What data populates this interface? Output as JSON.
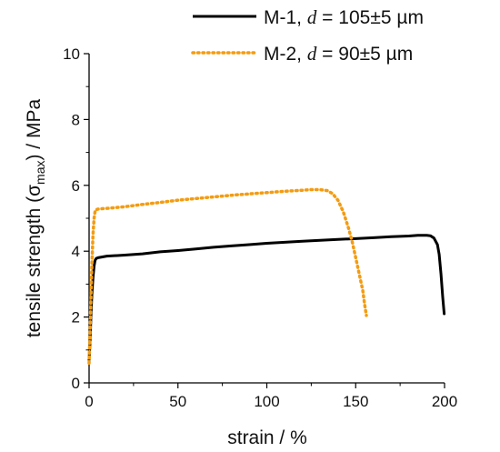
{
  "chart_data": {
    "type": "line",
    "xlabel": "strain / %",
    "ylabel": {
      "prefix": "tensile strength (σ",
      "subscript": "max",
      "suffix": ") / MPa"
    },
    "xlim": [
      0,
      200
    ],
    "ylim": [
      0,
      10
    ],
    "x_ticks": [
      0,
      50,
      100,
      150,
      200
    ],
    "y_ticks": [
      0,
      2,
      4,
      6,
      8,
      10
    ],
    "grid": false,
    "legend_position": "top",
    "series": [
      {
        "name": "M-1, d = 105±5 µm",
        "legend": {
          "label": "M-1, ",
          "var": "d",
          "value": " = 105±5 µm"
        },
        "color": "#000000",
        "style": "solid",
        "x": [
          0.0,
          0.5,
          1.0,
          1.6,
          2.2,
          2.8,
          3.4,
          4.0,
          5.0,
          10,
          20,
          30,
          40,
          50,
          60,
          70,
          80,
          90,
          100,
          110,
          120,
          130,
          140,
          150,
          160,
          170,
          180,
          185,
          190,
          192,
          194,
          196,
          197,
          198,
          199,
          199.8
        ],
        "y": [
          0.7,
          1.2,
          2.0,
          2.7,
          3.2,
          3.55,
          3.72,
          3.78,
          3.8,
          3.85,
          3.88,
          3.92,
          3.98,
          4.02,
          4.07,
          4.12,
          4.16,
          4.2,
          4.24,
          4.27,
          4.3,
          4.33,
          4.36,
          4.38,
          4.41,
          4.44,
          4.46,
          4.48,
          4.48,
          4.47,
          4.4,
          4.2,
          3.9,
          3.3,
          2.6,
          2.1
        ]
      },
      {
        "name": "M-2, d = 90±5 µm",
        "legend": {
          "label": "M-2, ",
          "var": "d",
          "value": " = 90±5 µm"
        },
        "color": "#F39C12",
        "style": "dotted",
        "x": [
          0.0,
          0.5,
          1.0,
          1.6,
          2.2,
          2.8,
          3.5,
          5,
          10,
          20,
          30,
          40,
          50,
          60,
          70,
          80,
          90,
          100,
          110,
          120,
          125,
          130,
          134,
          137,
          140,
          143,
          146,
          148,
          150,
          152,
          154,
          155,
          156
        ],
        "y": [
          0.6,
          1.5,
          2.6,
          3.6,
          4.5,
          5.0,
          5.25,
          5.28,
          5.3,
          5.35,
          5.42,
          5.48,
          5.55,
          5.6,
          5.65,
          5.7,
          5.74,
          5.78,
          5.82,
          5.85,
          5.87,
          5.87,
          5.84,
          5.75,
          5.55,
          5.2,
          4.7,
          4.3,
          3.8,
          3.3,
          2.8,
          2.4,
          2.05
        ]
      }
    ]
  }
}
